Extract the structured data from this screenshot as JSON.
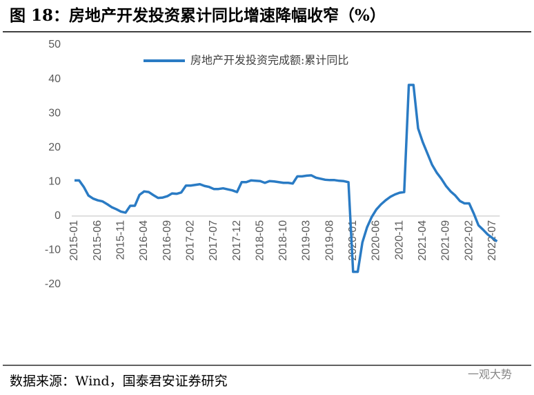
{
  "chart_data": {
    "type": "line",
    "title": "图 18：房地产开发投资累计同比增速降幅收窄（%）",
    "categories": [
      "2015-01",
      null,
      null,
      null,
      null,
      "2015-06",
      null,
      null,
      null,
      null,
      "2015-11",
      null,
      null,
      null,
      null,
      "2016-04",
      null,
      null,
      null,
      null,
      "2016-09",
      null,
      null,
      null,
      null,
      "2017-02",
      null,
      null,
      null,
      null,
      "2017-07",
      null,
      null,
      null,
      null,
      "2017-12",
      null,
      null,
      null,
      null,
      "2018-05",
      null,
      null,
      null,
      null,
      "2018-10",
      null,
      null,
      null,
      null,
      "2019-03",
      null,
      null,
      null,
      null,
      "2019-08",
      null,
      null,
      null,
      null,
      "2020-01",
      null,
      null,
      null,
      null,
      "2020-06",
      null,
      null,
      null,
      null,
      "2020-11",
      null,
      null,
      null,
      null,
      "2021-04",
      null,
      null,
      null,
      null,
      "2021-09",
      null,
      null,
      null,
      null,
      "2022-02",
      null,
      null,
      null,
      null,
      "2022-07",
      null
    ],
    "series": [
      {
        "name": "房地产开发投资完成额:累计同比",
        "color": "#2a7bc4",
        "values": [
          10.4,
          10.4,
          8.5,
          6.0,
          5.1,
          4.6,
          4.3,
          3.5,
          2.6,
          2.0,
          1.3,
          1.0,
          3.0,
          3.0,
          6.2,
          7.2,
          7.0,
          6.1,
          5.3,
          5.4,
          5.8,
          6.6,
          6.5,
          6.9,
          8.9,
          8.9,
          9.1,
          9.3,
          8.8,
          8.5,
          7.9,
          7.9,
          8.1,
          7.8,
          7.5,
          7.0,
          9.9,
          9.9,
          10.4,
          10.3,
          10.2,
          9.7,
          10.2,
          10.1,
          9.9,
          9.7,
          9.7,
          9.5,
          11.6,
          11.6,
          11.8,
          11.9,
          11.2,
          10.9,
          10.6,
          10.5,
          10.5,
          10.3,
          10.2,
          9.9,
          -16.3,
          -16.3,
          -7.7,
          -3.3,
          -0.3,
          1.9,
          3.4,
          4.6,
          5.6,
          6.3,
          6.8,
          7.0,
          38.3,
          38.3,
          25.6,
          21.6,
          18.3,
          15.0,
          12.7,
          10.9,
          8.8,
          7.2,
          6.0,
          4.4,
          3.7,
          3.7,
          0.7,
          -2.7,
          -4.0,
          -5.4,
          -6.4,
          -7.4
        ]
      }
    ],
    "ylim": [
      -20,
      50
    ],
    "yticks": [
      -20,
      -10,
      0,
      10,
      20,
      30,
      40,
      50
    ],
    "legend": "top"
  },
  "footer": {
    "source": "数据来源：Wind，国泰君安证券研究",
    "watermark": "一观大势"
  }
}
